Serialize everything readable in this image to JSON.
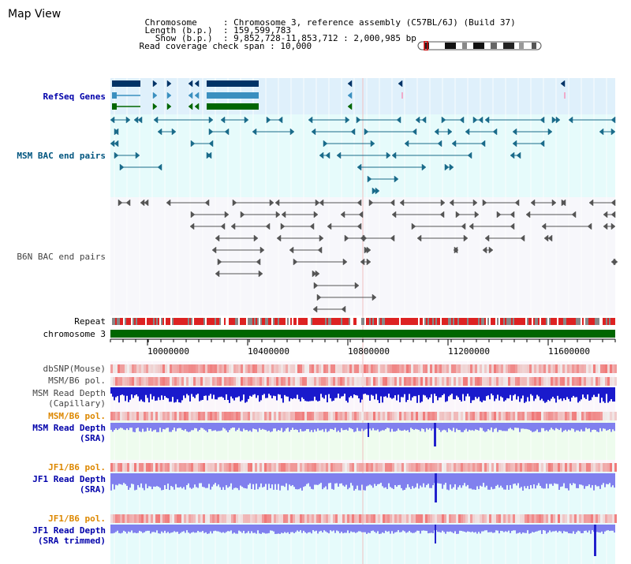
{
  "window": {
    "title": "Map View"
  },
  "header": {
    "chromosome_label": "Chromosome",
    "chromosome_value": "Chromosome 3, reference assembly (C57BL/6J) (Build 37)",
    "length_label": "Length (b.p.)",
    "length_value": "159,599,783",
    "show_label": "Show (b.p.)",
    "show_value": "9,852,728-11,853,712 : 2,000,985 bp",
    "span_label": "Read coverage check span",
    "span_value": "10,000"
  },
  "tracks": {
    "refseq": "RefSeq Genes",
    "msm_bac": "MSM BAC end pairs",
    "b6n_bac": "B6N BAC end pairs",
    "repeat": "Repeat",
    "chromosome": "chromosome 3",
    "dbsnp": "dbSNP(Mouse)",
    "msm_b6_pol_1": "MSM/B6 pol.",
    "msm_depth_cap_1": "MSM Read Depth",
    "msm_depth_cap_2": "(Capillary)",
    "msm_b6_pol_2": "MSM/B6 pol.",
    "msm_depth_sra_1": "MSM Read Depth",
    "msm_depth_sra_2": "(SRA)",
    "jf1_b6_pol_1": "JF1/B6 pol.",
    "jf1_depth_sra_1": "JF1 Read Depth",
    "jf1_depth_sra_2": "(SRA)",
    "jf1_b6_pol_2": "JF1/B6 pol.",
    "jf1_depth_trim_1": "JF1 Read Depth",
    "jf1_depth_trim_2": "(SRA trimmed)"
  },
  "axis": {
    "ticks": [
      "10000000",
      "10400000",
      "10800000",
      "11200000",
      "11600000"
    ]
  },
  "colors": {
    "refseq_bg": "#dff0fb",
    "msm_bg": "#e6fbfb",
    "b6n_bg": "#f5f5fb",
    "chromosome_bar": "#006600",
    "gene_dark": "#003366",
    "gene_mid": "#3a8fbf",
    "gene_green": "#006600",
    "msm_bac": "#1a6b8a",
    "b6n_bac": "#555555",
    "depth_capillary": "#1a1acc",
    "depth_sra": "#8080ee",
    "pol_red": "#ee2222"
  }
}
